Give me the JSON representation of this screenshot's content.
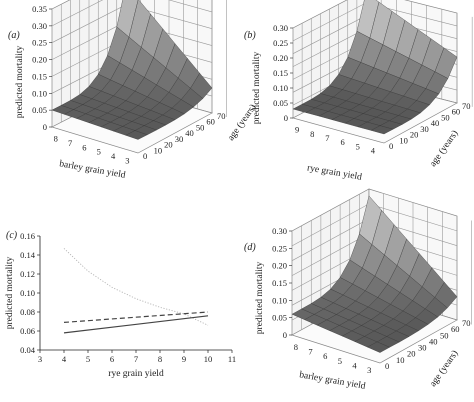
{
  "chart_data": [
    {
      "panel": "a",
      "panel_label": "(a)",
      "type": "surface3d",
      "xlabel": "barley grain yield",
      "ylabel": "age (years)",
      "zlabel": "predicted mortality",
      "x_ticks": [
        "8",
        "7",
        "6",
        "5",
        "4",
        "3"
      ],
      "y_ticks": [
        "0",
        "10",
        "20",
        "30",
        "40",
        "50",
        "60",
        "70"
      ],
      "z_ticks": [
        "0",
        "0.05",
        "0.10",
        "0.15",
        "0.20",
        "0.25",
        "0.30",
        "0.35"
      ],
      "zlim": [
        0,
        0.35
      ],
      "surface_corner_values": {
        "low_yield_old_age": 0.31,
        "high_yield_old_age": 0.08,
        "low_yield_young_age": 0.05,
        "high_yield_young_age": 0.04
      }
    },
    {
      "panel": "b",
      "panel_label": "(b)",
      "type": "surface3d",
      "xlabel": "rye grain yield",
      "ylabel": "age (years)",
      "zlabel": "predicted mortality",
      "x_ticks": [
        "9",
        "8",
        "7",
        "6",
        "5",
        "4"
      ],
      "y_ticks": [
        "0",
        "10",
        "20",
        "30",
        "40",
        "50",
        "60",
        "70"
      ],
      "z_ticks": [
        "0",
        "0.05",
        "0.10",
        "0.15",
        "0.20",
        "0.25",
        "0.30"
      ],
      "zlim": [
        0,
        0.3
      ],
      "surface_corner_values": {
        "low_yield_old_age": 0.29,
        "high_yield_old_age": 0.16,
        "low_yield_young_age": 0.03,
        "high_yield_young_age": 0.03
      }
    },
    {
      "panel": "c",
      "panel_label": "(c)",
      "type": "line",
      "xlabel": "rye grain yield",
      "ylabel": "predicted mortality",
      "xlim": [
        3,
        11
      ],
      "ylim": [
        0.04,
        0.16
      ],
      "x_ticks": [
        3,
        4,
        5,
        6,
        7,
        8,
        9,
        10,
        11
      ],
      "y_ticks": [
        0.04,
        0.06,
        0.08,
        0.1,
        0.12,
        0.14,
        0.16
      ],
      "y_tick_labels": [
        "0.04",
        "0.06",
        "0.08",
        "0.10",
        "0.12",
        "0.14",
        "0.16"
      ],
      "series": [
        {
          "style": "dotted",
          "color": "#b5b5b5",
          "x": [
            4,
            5,
            6,
            7,
            8,
            9,
            10
          ],
          "y": [
            0.147,
            0.123,
            0.106,
            0.094,
            0.085,
            0.078,
            0.066
          ]
        },
        {
          "style": "dashed",
          "color": "#444444",
          "x": [
            4,
            10
          ],
          "y": [
            0.069,
            0.08
          ]
        },
        {
          "style": "solid",
          "color": "#444444",
          "x": [
            4,
            10
          ],
          "y": [
            0.058,
            0.076
          ]
        }
      ]
    },
    {
      "panel": "d",
      "panel_label": "(d)",
      "type": "surface3d",
      "xlabel": "barley grain yield",
      "ylabel": "age (years)",
      "zlabel": "predicted mortality",
      "x_ticks": [
        "8",
        "7",
        "6",
        "5",
        "4",
        "3"
      ],
      "y_ticks": [
        "0",
        "10",
        "20",
        "30",
        "40",
        "50",
        "60",
        "70"
      ],
      "z_ticks": [
        "0",
        "0.05",
        "0.10",
        "0.15",
        "0.20",
        "0.25",
        "0.30"
      ],
      "zlim": [
        0,
        0.3
      ],
      "surface_corner_values": {
        "low_yield_old_age": 0.28,
        "high_yield_old_age": 0.07,
        "low_yield_young_age": 0.06,
        "high_yield_young_age": 0.03
      }
    }
  ]
}
